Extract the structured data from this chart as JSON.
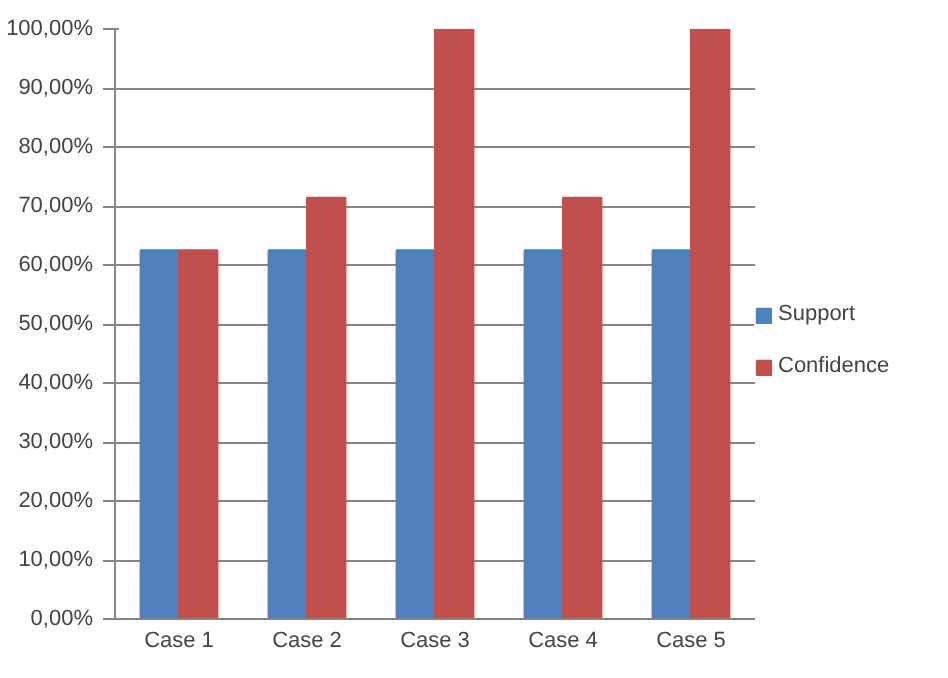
{
  "chart_data": {
    "type": "bar",
    "categories": [
      "Case 1",
      "Case 2",
      "Case 3",
      "Case 4",
      "Case 5"
    ],
    "series": [
      {
        "name": "Support",
        "color": "#4f81bd",
        "values": [
          62.5,
          62.5,
          62.5,
          62.5,
          62.5
        ]
      },
      {
        "name": "Confidence",
        "color": "#c0504d",
        "values": [
          62.5,
          71.4,
          100,
          71.4,
          100
        ]
      }
    ],
    "ylim": [
      0,
      100
    ],
    "yticks": [
      {
        "value": 0,
        "label": "0,00%"
      },
      {
        "value": 10,
        "label": "10,00%"
      },
      {
        "value": 20,
        "label": "20,00%"
      },
      {
        "value": 30,
        "label": "30,00%"
      },
      {
        "value": 40,
        "label": "40,00%"
      },
      {
        "value": 50,
        "label": "50,00%"
      },
      {
        "value": 60,
        "label": "60,00%"
      },
      {
        "value": 70,
        "label": "70,00%"
      },
      {
        "value": 80,
        "label": "80,00%"
      },
      {
        "value": 90,
        "label": "90,00%"
      },
      {
        "value": 100,
        "label": "100,00%"
      }
    ],
    "grid": "y",
    "legend": "right"
  }
}
